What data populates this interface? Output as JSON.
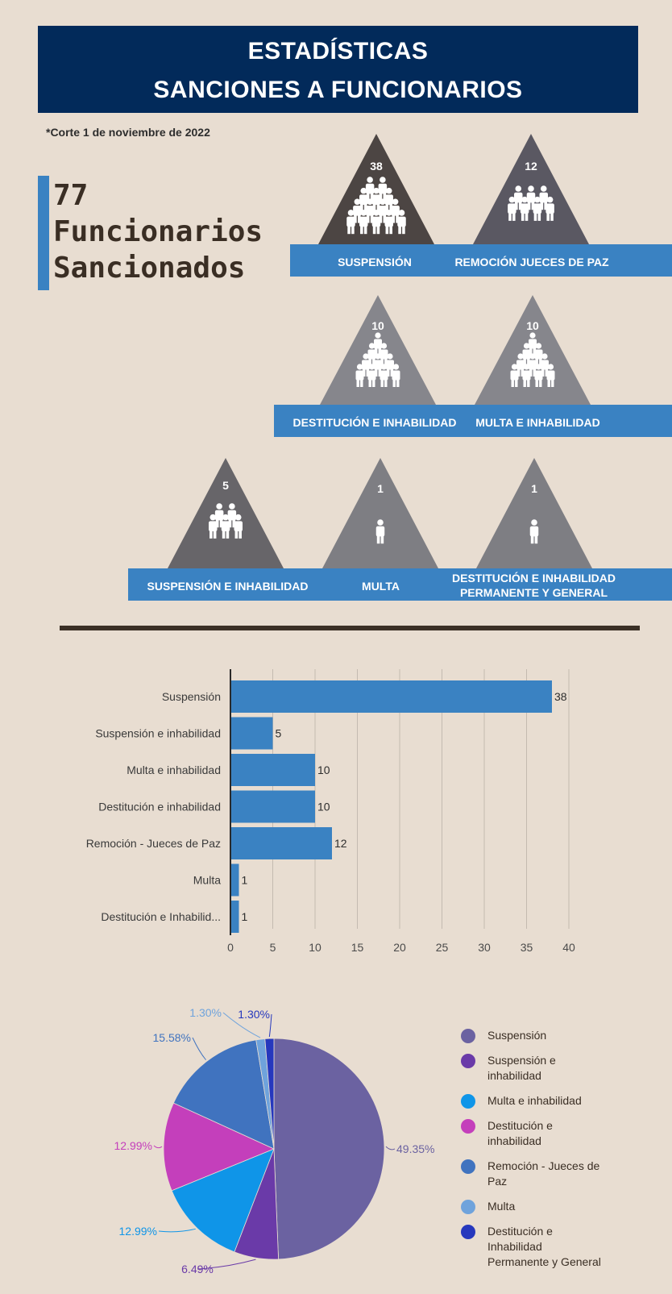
{
  "header": {
    "line1": "ESTADÍSTICAS",
    "line2": "SANCIONES A FUNCIONARIOS"
  },
  "corte": "*Corte 1 de noviembre de 2022",
  "total": {
    "line1": "77",
    "line2": "Funcionarios",
    "line3": "Sancionados"
  },
  "triangles": [
    {
      "value": "38",
      "label": "SUSPENSIÓN"
    },
    {
      "value": "12",
      "label": "REMOCIÓN JUECES DE PAZ"
    },
    {
      "value": "10",
      "label": "DESTITUCIÓN E INHABILIDAD"
    },
    {
      "value": "10",
      "label": "MULTA E INHABILIDAD"
    },
    {
      "value": "5",
      "label": "SUSPENSIÓN E INHABILIDAD"
    },
    {
      "value": "1",
      "label": "MULTA"
    },
    {
      "value": "1",
      "label_line1": "DESTITUCIÓN E INHABILIDAD",
      "label_line2": "PERMANENTE Y GENERAL"
    }
  ],
  "chart_data": [
    {
      "type": "bar",
      "orientation": "horizontal",
      "categories": [
        "Suspensión",
        "Suspensión e inhabilidad",
        "Multa e inhabilidad",
        "Destitución e inhabilidad",
        "Remoción - Jueces de Paz",
        "Multa",
        "Destitución e Inhabilid..."
      ],
      "values": [
        38,
        5,
        10,
        10,
        12,
        1,
        1
      ],
      "xlim": [
        0,
        40
      ],
      "xticks": [
        "0",
        "5",
        "10",
        "15",
        "20",
        "25",
        "30",
        "35",
        "40"
      ],
      "grid": true,
      "color": "#3a82c2"
    },
    {
      "type": "pie",
      "labels": [
        "Suspensión",
        "Suspensión e inhabilidad",
        "Multa e inhabilidad",
        "Destitución e inhabilidad",
        "Remoción - Jueces de Paz",
        "Multa",
        "Destitución e Inhabilidad Permanente y General"
      ],
      "legend_lines": [
        [
          "Suspensión"
        ],
        [
          "Suspensión e",
          "inhabilidad"
        ],
        [
          "Multa e inhabilidad"
        ],
        [
          "Destitución e",
          "inhabilidad"
        ],
        [
          "Remoción - Jueces de",
          "Paz"
        ],
        [
          "Multa"
        ],
        [
          "Destitución e",
          "Inhabilidad",
          "Permanente y General"
        ]
      ],
      "values": [
        49.35,
        6.49,
        12.99,
        12.99,
        15.58,
        1.3,
        1.3
      ],
      "pct_labels": [
        "49.35%",
        "6.49%",
        "12.99%",
        "12.99%",
        "15.58%",
        "1.30%",
        "1.30%"
      ],
      "colors": [
        "#6b62a1",
        "#6a3aa8",
        "#0f95e8",
        "#c43fbb",
        "#4073bf",
        "#6fa3dc",
        "#2638bd"
      ],
      "legend": "right"
    }
  ]
}
